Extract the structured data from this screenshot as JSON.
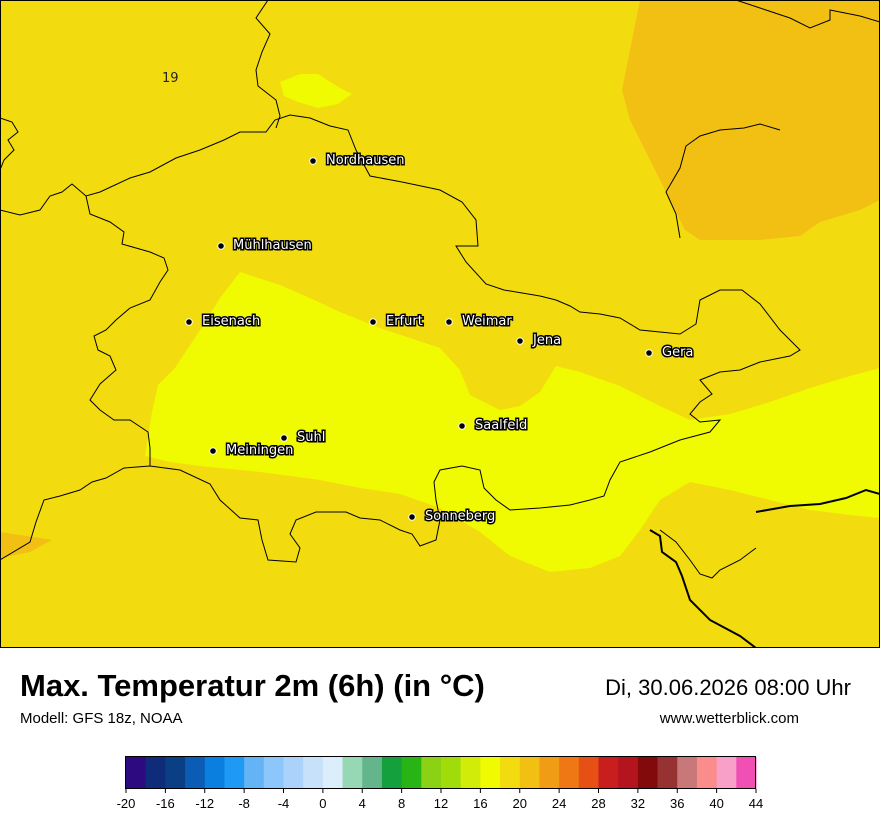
{
  "map": {
    "contour_label": "19",
    "cities": [
      {
        "name": "Nordhausen",
        "icon": "city-dot-icon"
      },
      {
        "name": "Mühlhausen",
        "icon": "city-dot-icon"
      },
      {
        "name": "Eisenach",
        "icon": "city-dot-icon"
      },
      {
        "name": "Erfurt",
        "icon": "city-dot-icon"
      },
      {
        "name": "Weimar",
        "icon": "city-dot-icon"
      },
      {
        "name": "Jena",
        "icon": "city-dot-icon"
      },
      {
        "name": "Gera",
        "icon": "city-dot-icon"
      },
      {
        "name": "Suhl",
        "icon": "city-dot-icon"
      },
      {
        "name": "Meiningen",
        "icon": "city-dot-icon"
      },
      {
        "name": "Saalfeld",
        "icon": "city-dot-icon"
      },
      {
        "name": "Sonneberg",
        "icon": "city-dot-icon"
      }
    ],
    "fill_colors": {
      "band_18_20": "#f2dc0f",
      "band_16_18": "#f0fa00",
      "band_20_22": "#f2c012",
      "band_22_24": "#f09c14"
    }
  },
  "footer": {
    "title": "Max. Temperatur 2m (6h) (in °C)",
    "model": "Modell: GFS 18z, NOAA",
    "datetime": "Di, 30.06.2026 08:00 Uhr",
    "website": "www.wetterblick.com"
  },
  "legend": {
    "ticks": [
      "-20",
      "-16",
      "-12",
      "-8",
      "-4",
      "0",
      "4",
      "8",
      "12",
      "16",
      "20",
      "24",
      "28",
      "32",
      "36",
      "40",
      "44"
    ],
    "colors": [
      "#2d0a80",
      "#0f2c7a",
      "#0a3f86",
      "#0a5cb4",
      "#0a7fe0",
      "#1e9af5",
      "#64b4f5",
      "#8cc6fa",
      "#aad2fa",
      "#c8e1fa",
      "#dceefc",
      "#96d7b4",
      "#64b48c",
      "#14a03c",
      "#28b414",
      "#8cd214",
      "#a0dc0a",
      "#d2ec0a",
      "#f0fa00",
      "#f2dc0f",
      "#f2c012",
      "#f09c14",
      "#f07814",
      "#e65014",
      "#c81e1e",
      "#b4141e",
      "#820a0a",
      "#963232",
      "#c87878",
      "#fa8c8c",
      "#f8a0c8",
      "#f050b4"
    ]
  }
}
